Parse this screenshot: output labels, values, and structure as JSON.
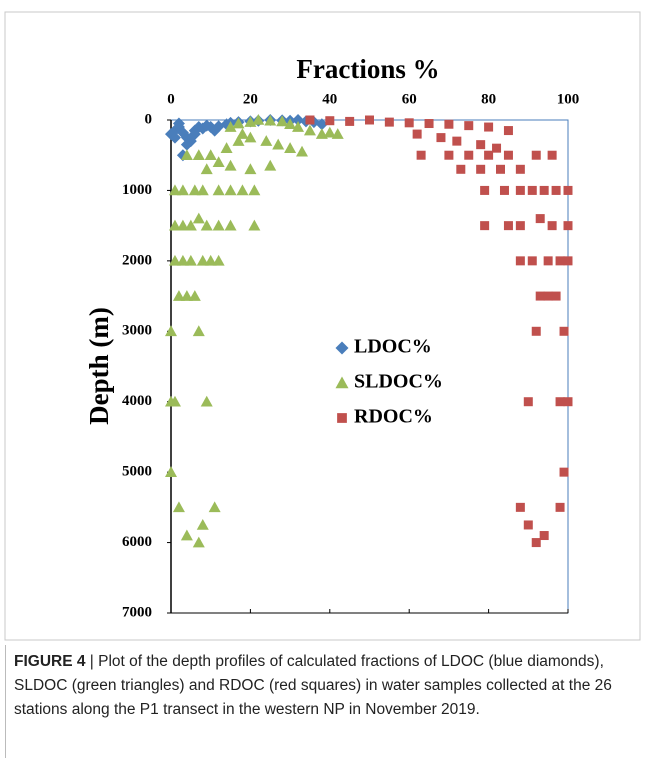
{
  "chart_data": {
    "type": "scatter",
    "title": "Fractions %",
    "ylabel": "Depth (m)",
    "xlim": [
      0,
      100
    ],
    "xticks": [
      0,
      20,
      40,
      60,
      80,
      100
    ],
    "ylim": [
      0,
      7000
    ],
    "yticks": [
      0,
      1000,
      2000,
      3000,
      4000,
      5000,
      6000,
      7000
    ],
    "y_inverted": true,
    "x_axis_position": "top",
    "legend_position": "center",
    "series": [
      {
        "name": "LDOC%",
        "color": "#4a7ebb",
        "marker": "diamond",
        "x": [
          0,
          1,
          2,
          3,
          4,
          5,
          6,
          7,
          8,
          9,
          10,
          11,
          12,
          14,
          15,
          17,
          20,
          22,
          25,
          28,
          30,
          32,
          34,
          36,
          38,
          3,
          4,
          6,
          2,
          1
        ],
        "y": [
          200,
          150,
          100,
          180,
          250,
          300,
          150,
          100,
          120,
          80,
          100,
          150,
          90,
          60,
          40,
          30,
          20,
          10,
          0,
          5,
          10,
          0,
          20,
          30,
          60,
          500,
          350,
          200,
          50,
          250
        ]
      },
      {
        "name": "SLDOC%",
        "color": "#9bbb59",
        "marker": "triangle",
        "x": [
          15,
          17,
          20,
          22,
          25,
          28,
          30,
          32,
          35,
          38,
          40,
          42,
          18,
          20,
          24,
          27,
          30,
          33,
          17,
          14,
          10,
          7,
          4,
          12,
          15,
          20,
          25,
          9,
          1,
          3,
          6,
          8,
          12,
          15,
          18,
          21,
          1,
          3,
          5,
          7,
          9,
          12,
          15,
          21,
          1,
          3,
          5,
          8,
          10,
          12,
          2,
          4,
          6,
          0,
          7,
          0,
          1,
          9,
          0,
          2,
          11,
          4,
          8,
          7
        ],
        "y": [
          100,
          50,
          30,
          0,
          10,
          20,
          60,
          100,
          150,
          200,
          180,
          200,
          200,
          250,
          300,
          350,
          400,
          450,
          300,
          400,
          500,
          500,
          500,
          600,
          650,
          700,
          650,
          700,
          1000,
          1000,
          1000,
          1000,
          1000,
          1000,
          1000,
          1000,
          1500,
          1500,
          1500,
          1400,
          1500,
          1500,
          1500,
          1500,
          2000,
          2000,
          2000,
          2000,
          2000,
          2000,
          2500,
          2500,
          2500,
          3000,
          3000,
          4000,
          4000,
          4000,
          5000,
          5500,
          5500,
          5900,
          5750,
          6000
        ]
      },
      {
        "name": "RDOC%",
        "color": "#c0504d",
        "marker": "square",
        "x": [
          35,
          40,
          45,
          50,
          55,
          60,
          65,
          70,
          75,
          80,
          85,
          62,
          68,
          72,
          78,
          82,
          63,
          70,
          75,
          80,
          85,
          92,
          96,
          73,
          78,
          83,
          88,
          79,
          84,
          88,
          91,
          94,
          97,
          100,
          79,
          85,
          88,
          93,
          96,
          100,
          88,
          91,
          95,
          98,
          100,
          93,
          95,
          97,
          92,
          99,
          90,
          98,
          100,
          99,
          88,
          98,
          90,
          94,
          92
        ],
        "y": [
          0,
          10,
          20,
          0,
          30,
          40,
          50,
          60,
          80,
          100,
          150,
          200,
          250,
          300,
          350,
          400,
          500,
          500,
          500,
          500,
          500,
          500,
          500,
          700,
          700,
          700,
          700,
          1000,
          1000,
          1000,
          1000,
          1000,
          1000,
          1000,
          1500,
          1500,
          1500,
          1400,
          1500,
          1500,
          2000,
          2000,
          2000,
          2000,
          2000,
          2500,
          2500,
          2500,
          3000,
          3000,
          4000,
          4000,
          4000,
          5000,
          5500,
          5500,
          5750,
          5900,
          6000
        ]
      }
    ]
  },
  "caption": {
    "label": "FIGURE 4",
    "text": "| Plot of the depth profiles of calculated fractions of LDOC (blue diamonds), SLDOC (green triangles) and RDOC (red squares) in water samples collected at the 26 stations along the P1 transect in the western NP in November 2019."
  }
}
